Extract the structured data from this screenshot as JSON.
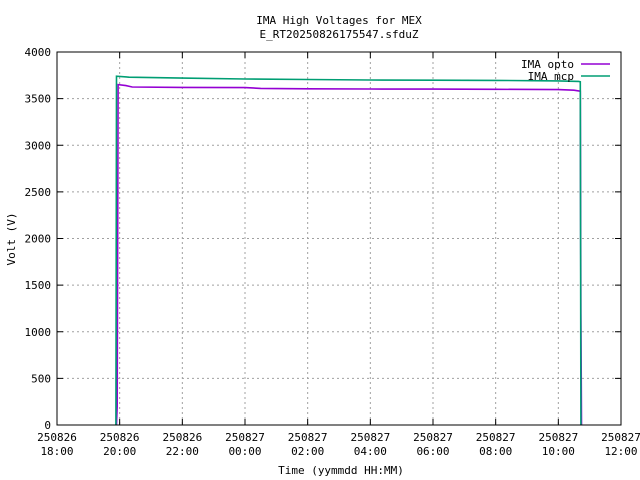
{
  "chart_data": {
    "type": "line",
    "title": "IMA High Voltages for MEX",
    "subtitle": "E_RT20250826175547.sfduZ",
    "xlabel": "Time (yymmdd HH:MM)",
    "ylabel": "Volt (V)",
    "xlim_hours": [
      18,
      30
    ],
    "ylim": [
      0,
      4000
    ],
    "grid": true,
    "legend_position": "top-right",
    "x_ticks": [
      {
        "hours": 18,
        "date": "250826",
        "time": "18:00"
      },
      {
        "hours": 20,
        "date": "250826",
        "time": "20:00"
      },
      {
        "hours": 22,
        "date": "250826",
        "time": "22:00"
      },
      {
        "hours": 24,
        "date": "250827",
        "time": "00:00"
      },
      {
        "hours": 26,
        "date": "250827",
        "time": "02:00"
      },
      {
        "hours": 28,
        "date": "250827",
        "time": "04:00"
      },
      {
        "hours": 30,
        "date": "250827",
        "time": "06:00"
      },
      {
        "hours": 32,
        "date": "250827",
        "time": "08:00"
      },
      {
        "hours": 34,
        "date": "250827",
        "time": "10:00"
      },
      {
        "hours": 36,
        "date": "250827",
        "time": "12:00"
      }
    ],
    "y_ticks": [
      0,
      500,
      1000,
      1500,
      2000,
      2500,
      3000,
      3500,
      4000
    ],
    "series": [
      {
        "name": "IMA opto",
        "color": "#9400d3",
        "points": [
          [
            19.9,
            0
          ],
          [
            19.92,
            200
          ],
          [
            19.95,
            3650
          ],
          [
            20.2,
            3640
          ],
          [
            20.4,
            3625
          ],
          [
            22.0,
            3620
          ],
          [
            24.0,
            3618
          ],
          [
            24.5,
            3610
          ],
          [
            26.0,
            3605
          ],
          [
            28.0,
            3603
          ],
          [
            30.0,
            3602
          ],
          [
            32.0,
            3600
          ],
          [
            34.0,
            3597
          ],
          [
            34.5,
            3590
          ],
          [
            34.7,
            3580
          ],
          [
            34.72,
            1200
          ],
          [
            34.74,
            0
          ]
        ]
      },
      {
        "name": "IMA mcp",
        "color": "#009e73",
        "points": [
          [
            19.88,
            0
          ],
          [
            19.9,
            3740
          ],
          [
            20.3,
            3730
          ],
          [
            22.0,
            3720
          ],
          [
            24.0,
            3710
          ],
          [
            26.0,
            3705
          ],
          [
            28.0,
            3700
          ],
          [
            30.0,
            3698
          ],
          [
            32.0,
            3695
          ],
          [
            34.0,
            3690
          ],
          [
            34.65,
            3685
          ],
          [
            34.7,
            3680
          ],
          [
            34.72,
            0
          ]
        ]
      }
    ]
  }
}
